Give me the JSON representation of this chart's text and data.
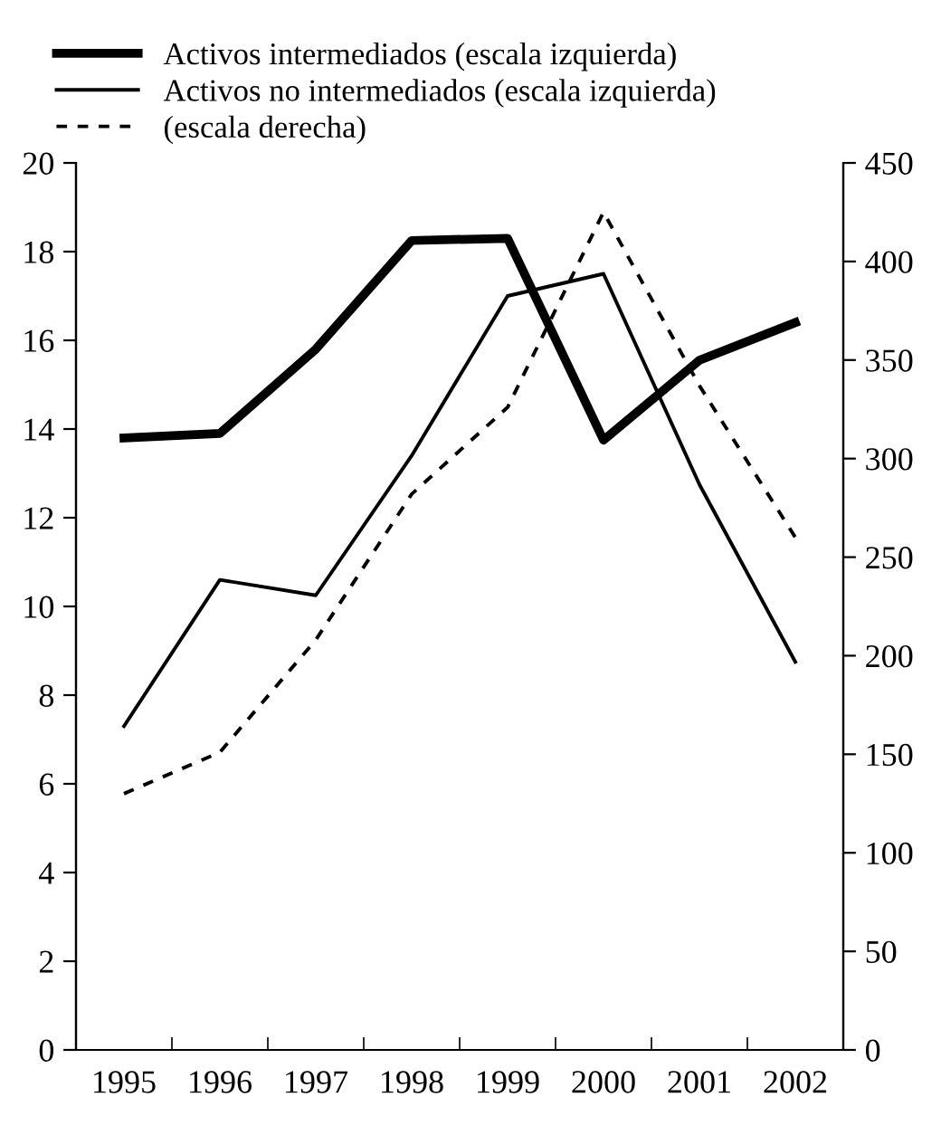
{
  "chart_data": {
    "type": "line",
    "categories": [
      "1995",
      "1996",
      "1997",
      "1998",
      "1999",
      "2000",
      "2001",
      "2002"
    ],
    "series": [
      {
        "name": "Activos intermediados (escala izquierda)",
        "color": "#000000",
        "line_style": "solid",
        "values": [
          13.8,
          13.9,
          15.8,
          18.25,
          18.3,
          13.75,
          15.55,
          16.4
        ]
      },
      {
        "name": "Activos no intermediados (escala izquierda)",
        "color": "#000000",
        "line_style": "solid",
        "values": [
          7.3,
          10.6,
          10.25,
          13.4,
          17.0,
          17.5,
          12.75,
          8.75
        ]
      },
      {
        "name": "(escala derecha)",
        "color": "#000000",
        "line_style": "dashed",
        "axis": "y2",
        "values": [
          130,
          151,
          208,
          282,
          326,
          425,
          337,
          260
        ]
      }
    ],
    "ylim": [
      0,
      20
    ],
    "yticks": [
      0,
      2,
      4,
      6,
      8,
      10,
      12,
      14,
      16,
      18,
      20
    ],
    "y2lim": [
      0,
      450
    ],
    "y2ticks": [
      0,
      50,
      100,
      150,
      200,
      250,
      300,
      350,
      400,
      450
    ],
    "grid": false,
    "legend": "top",
    "marker": "none"
  }
}
